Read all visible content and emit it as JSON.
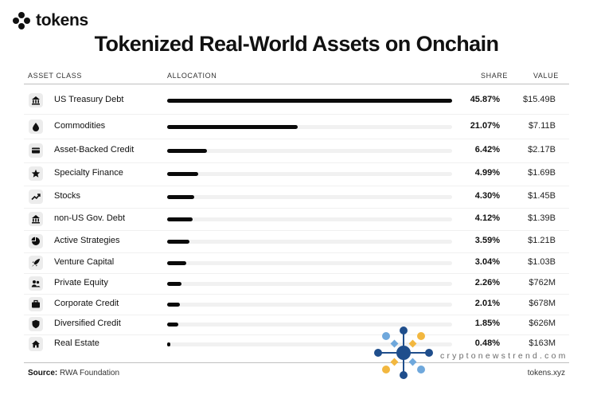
{
  "brand": {
    "name": "tokens",
    "icon": "tokens-logo-icon"
  },
  "title": "Tokenized Real-World Assets on Onchain",
  "headers": {
    "asset_class": "ASSET CLASS",
    "allocation": "ALLOCATION",
    "share": "SHARE",
    "value": "VALUE"
  },
  "chart_data": {
    "type": "bar",
    "orientation": "horizontal",
    "title": "Tokenized Real-World Assets on Onchain",
    "xlim": [
      0,
      45.87
    ],
    "categories": [
      "US Treasury Debt",
      "Commodities",
      "Asset-Backed Credit",
      "Specialty Finance",
      "Stocks",
      "non-US Gov. Debt",
      "Active Strategies",
      "Venture Capital",
      "Private Equity",
      "Corporate Credit",
      "Diversified Credit",
      "Real Estate"
    ],
    "rows": [
      {
        "label": "US Treasury Debt",
        "icon": "bank-icon",
        "share": 45.87,
        "share_text": "45.87%",
        "value_text": "$15.49B"
      },
      {
        "label": "Commodities",
        "icon": "drop-icon",
        "share": 21.07,
        "share_text": "21.07%",
        "value_text": "$7.11B"
      },
      {
        "label": "Asset-Backed Credit",
        "icon": "card-icon",
        "share": 6.42,
        "share_text": "6.42%",
        "value_text": "$2.17B"
      },
      {
        "label": "Specialty Finance",
        "icon": "star-icon",
        "share": 4.99,
        "share_text": "4.99%",
        "value_text": "$1.69B"
      },
      {
        "label": "Stocks",
        "icon": "trend-icon",
        "share": 4.3,
        "share_text": "4.30%",
        "value_text": "$1.45B"
      },
      {
        "label": "non-US Gov. Debt",
        "icon": "bank-icon",
        "share": 4.12,
        "share_text": "4.12%",
        "value_text": "$1.39B"
      },
      {
        "label": "Active Strategies",
        "icon": "pie-icon",
        "share": 3.59,
        "share_text": "3.59%",
        "value_text": "$1.21B"
      },
      {
        "label": "Venture Capital",
        "icon": "rocket-icon",
        "share": 3.04,
        "share_text": "3.04%",
        "value_text": "$1.03B"
      },
      {
        "label": "Private Equity",
        "icon": "people-icon",
        "share": 2.26,
        "share_text": "2.26%",
        "value_text": "$762M"
      },
      {
        "label": "Corporate Credit",
        "icon": "briefcase-icon",
        "share": 2.01,
        "share_text": "2.01%",
        "value_text": "$678M"
      },
      {
        "label": "Diversified Credit",
        "icon": "shield-icon",
        "share": 1.85,
        "share_text": "1.85%",
        "value_text": "$626M"
      },
      {
        "label": "Real Estate",
        "icon": "house-icon",
        "share": 0.48,
        "share_text": "0.48%",
        "value_text": "$163M"
      }
    ]
  },
  "footer": {
    "source_label": "Source:",
    "source_value": "RWA Foundation",
    "site": "tokens.xyz"
  },
  "watermark": {
    "text": "cryptonewstrend.com",
    "icon": "network-logo-icon",
    "colors": [
      "#1f4e8c",
      "#f2b73f",
      "#6fa8dc"
    ]
  }
}
